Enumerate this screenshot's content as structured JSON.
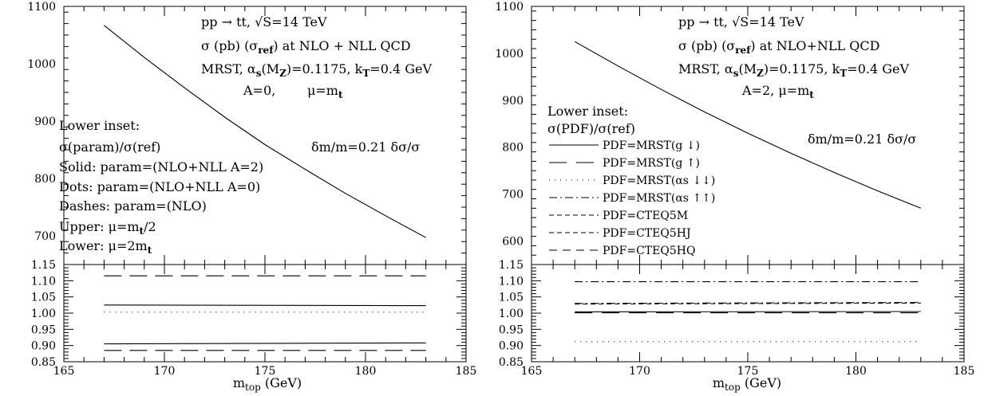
{
  "chart_data": [
    {
      "type": "line",
      "panel": "left",
      "xlabel": "m_top (GeV)",
      "xlim": [
        165,
        185
      ],
      "x_ticks": [
        165,
        170,
        175,
        180,
        185
      ],
      "main": {
        "ylim": [
          650,
          1100
        ],
        "y_ticks": [
          700,
          800,
          900,
          1000,
          1100
        ],
        "series": [
          {
            "x": [
              167,
              169,
              171,
              173,
              175,
              177,
              179,
              181,
              183
            ],
            "y": [
              1067,
              1011,
              958,
              907,
              859,
              816,
              774,
              735,
              697
            ],
            "style": "solid"
          }
        ]
      },
      "annotations": [
        "pp → tt, √S=14 TeV",
        "σ (pb) (σref) at NLO + NLL QCD",
        "MRST, αs(MZ)=0.1175, kT=0.4 GeV",
        "A=0,",
        "μ=mt",
        "δm/m=0.21 δσ/σ",
        "Lower inset:",
        "σ(param)/σ(ref)",
        "Solid: param=(NLO+NLL A=2)",
        "Dots: param=(NLO+NLL A=0)",
        "Dashes: param=(NLO)",
        "Upper: μ=mt/2",
        "Lower: μ=2mt"
      ],
      "inset": {
        "ylim": [
          0.85,
          1.15
        ],
        "y_ticks": [
          "0.85",
          "0.90",
          "0.95",
          "1.00",
          "1.05",
          "1.10",
          "1.15"
        ],
        "series": [
          {
            "x": [
              167,
              183
            ],
            "y": [
              1.115,
              1.115
            ],
            "style": "dashed"
          },
          {
            "x": [
              167,
              183
            ],
            "y": [
              1.025,
              1.023
            ],
            "style": "solid"
          },
          {
            "x": [
              167,
              183
            ],
            "y": [
              1.003,
              1.003
            ],
            "style": "dotted"
          },
          {
            "x": [
              167,
              183
            ],
            "y": [
              0.905,
              0.908
            ],
            "style": "solid"
          },
          {
            "x": [
              167,
              183
            ],
            "y": [
              0.885,
              0.885
            ],
            "style": "dashed"
          }
        ]
      }
    },
    {
      "type": "line",
      "panel": "right",
      "xlabel": "m_top (GeV)",
      "xlim": [
        165,
        185
      ],
      "x_ticks": [
        165,
        170,
        175,
        180,
        185
      ],
      "main": {
        "ylim": [
          550,
          1100
        ],
        "y_ticks": [
          600,
          700,
          800,
          900,
          1000,
          1100
        ],
        "series": [
          {
            "x": [
              167,
              169,
              171,
              173,
              175,
              177,
              179,
              181,
              183
            ],
            "y": [
              1025,
              973,
              923,
              875,
              830,
              787,
              746,
              707,
              670
            ],
            "style": "solid"
          }
        ]
      },
      "annotations": [
        "pp → tt, √S=14 TeV",
        "σ (pb) (σref) at NLO+NLL QCD",
        "MRST, αs(MZ)=0.1175, kT=0.4 GeV",
        "A=2, μ=mt",
        "δm/m=0.21 δσ/σ",
        "Lower inset:",
        "σ(PDF)/σ(ref)"
      ],
      "legend": [
        {
          "label": "PDF=MRST(g ↓)",
          "style": "solid"
        },
        {
          "label": "PDF=MRST(g ↑)",
          "style": "long-dash"
        },
        {
          "label": "PDF=MRST(αs ↓↓)",
          "style": "dotted"
        },
        {
          "label": "PDF=MRST(αs ↑↑)",
          "style": "dash-dot"
        },
        {
          "label": "PDF=CTEQ5M",
          "style": "short-dash"
        },
        {
          "label": "PDF=CTEQ5HJ",
          "style": "short-dash"
        },
        {
          "label": "PDF=CTEQ5HQ",
          "style": "medium-dash"
        }
      ],
      "inset": {
        "ylim": [
          0.85,
          1.15
        ],
        "y_ticks": [
          "0.85",
          "0.90",
          "0.95",
          "1.00",
          "1.05",
          "1.10",
          "1.15"
        ],
        "series": [
          {
            "x": [
              167,
              183
            ],
            "y": [
              1.097,
              1.097
            ],
            "style": "dash-dot"
          },
          {
            "x": [
              167,
              183
            ],
            "y": [
              1.03,
              1.033
            ],
            "style": "dash-dot"
          },
          {
            "x": [
              167,
              183
            ],
            "y": [
              1.028,
              1.031
            ],
            "style": "short-dash"
          },
          {
            "x": [
              167,
              183
            ],
            "y": [
              1.004,
              1.005
            ],
            "style": "solid"
          },
          {
            "x": [
              167,
              183
            ],
            "y": [
              1.001,
              1.001
            ],
            "style": "long-dash"
          },
          {
            "x": [
              167,
              183
            ],
            "y": [
              0.912,
              0.912
            ],
            "style": "dotted"
          }
        ]
      }
    }
  ]
}
